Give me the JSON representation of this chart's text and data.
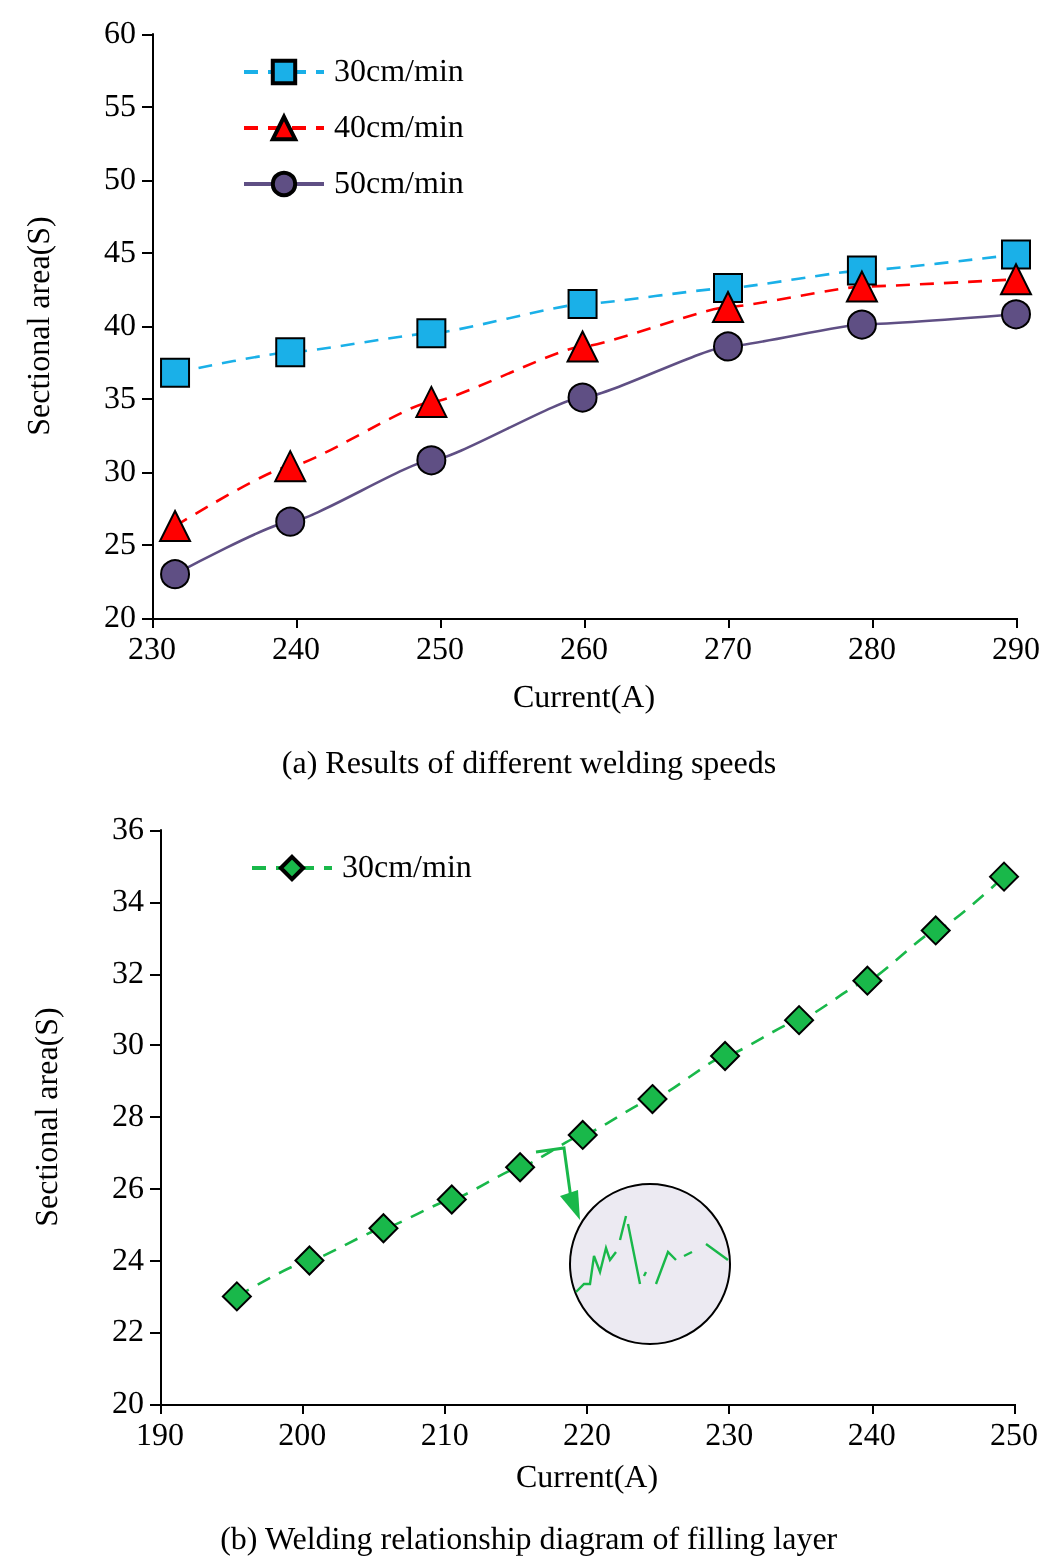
{
  "chart_data": [
    {
      "type": "line",
      "xlabel": "Current(A)",
      "ylabel": "Sectional area(S)",
      "annotations": [
        "(a) Results of different welding speeds"
      ],
      "x": [
        231.6,
        239.6,
        249.4,
        259.9,
        270,
        279.3,
        290
      ],
      "series": [
        {
          "name": "30cm/min",
          "color": "#1ab0e8",
          "marker": "square",
          "line_style": "dashed",
          "values": [
            36.8,
            38.2,
            39.5,
            41.5,
            42.6,
            43.8,
            44.9
          ]
        },
        {
          "name": "40cm/min",
          "color": "#ff0000",
          "marker": "triangle",
          "line_style": "dashed",
          "values": [
            26.3,
            30.4,
            34.8,
            38.6,
            41.3,
            42.7,
            43.2
          ]
        },
        {
          "name": "50cm/min",
          "color": "#5f4f84",
          "marker": "circle",
          "line_style": "solid",
          "values": [
            23.0,
            26.6,
            30.8,
            35.1,
            38.6,
            40.1,
            40.8
          ]
        }
      ],
      "xlim": [
        230,
        290
      ],
      "xticks": [
        230,
        240,
        250,
        260,
        270,
        280,
        290
      ],
      "ylim": [
        20,
        60
      ],
      "yticks": [
        20,
        25,
        30,
        35,
        40,
        45,
        50,
        55,
        60
      ],
      "grid": false,
      "legend": "top left"
    },
    {
      "type": "line",
      "xlabel": "Current(A)",
      "ylabel": "Sectional area(S)",
      "annotations": [
        "(b) Welding relationship diagram of filling layer"
      ],
      "x": [
        195.4,
        200.5,
        205.7,
        210.5,
        215.3,
        219.7,
        224.6,
        229.7,
        234.9,
        239.7,
        244.5,
        249.3
      ],
      "series": [
        {
          "name": "30cm/min",
          "color": "#19b84a",
          "marker": "diamond",
          "line_style": "dashed",
          "values": [
            23.0,
            24.0,
            24.9,
            25.7,
            26.6,
            27.5,
            28.5,
            29.7,
            30.7,
            31.8,
            33.2,
            34.7
          ]
        }
      ],
      "xlim": [
        190,
        250
      ],
      "xticks": [
        190,
        200,
        210,
        220,
        230,
        240,
        250
      ],
      "ylim": [
        20,
        36
      ],
      "yticks": [
        20,
        22,
        24,
        26,
        28,
        30,
        32,
        34,
        36
      ],
      "grid": false,
      "legend": "top left"
    }
  ]
}
